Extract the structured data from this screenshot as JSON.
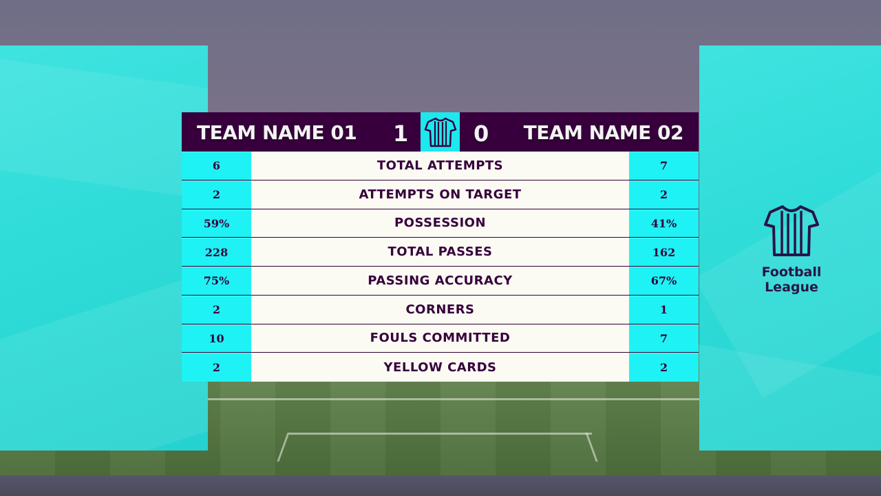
{
  "scoreboard": {
    "home_team": "TEAM NAME 01",
    "away_team": "TEAM NAME 02",
    "home_score": "1",
    "away_score": "0",
    "accent_color": "#1ef2f4",
    "header_color": "#37003c",
    "badge_icon": "shirt-icon"
  },
  "stats": [
    {
      "home": "6",
      "label": "TOTAL ATTEMPTS",
      "away": "7"
    },
    {
      "home": "2",
      "label": "ATTEMPTS ON TARGET",
      "away": "2"
    },
    {
      "home": "59%",
      "label": "POSSESSION",
      "away": "41%"
    },
    {
      "home": "228",
      "label": "TOTAL PASSES",
      "away": "162"
    },
    {
      "home": "75%",
      "label": "PASSING ACCURACY",
      "away": "67%"
    },
    {
      "home": "2",
      "label": "CORNERS",
      "away": "1"
    },
    {
      "home": "10",
      "label": "FOULS COMMITTED",
      "away": "7"
    },
    {
      "home": "2",
      "label": "YELLOW CARDS",
      "away": "2"
    }
  ],
  "logo": {
    "icon": "shirt-icon",
    "line1": "Football",
    "line2": "League"
  }
}
